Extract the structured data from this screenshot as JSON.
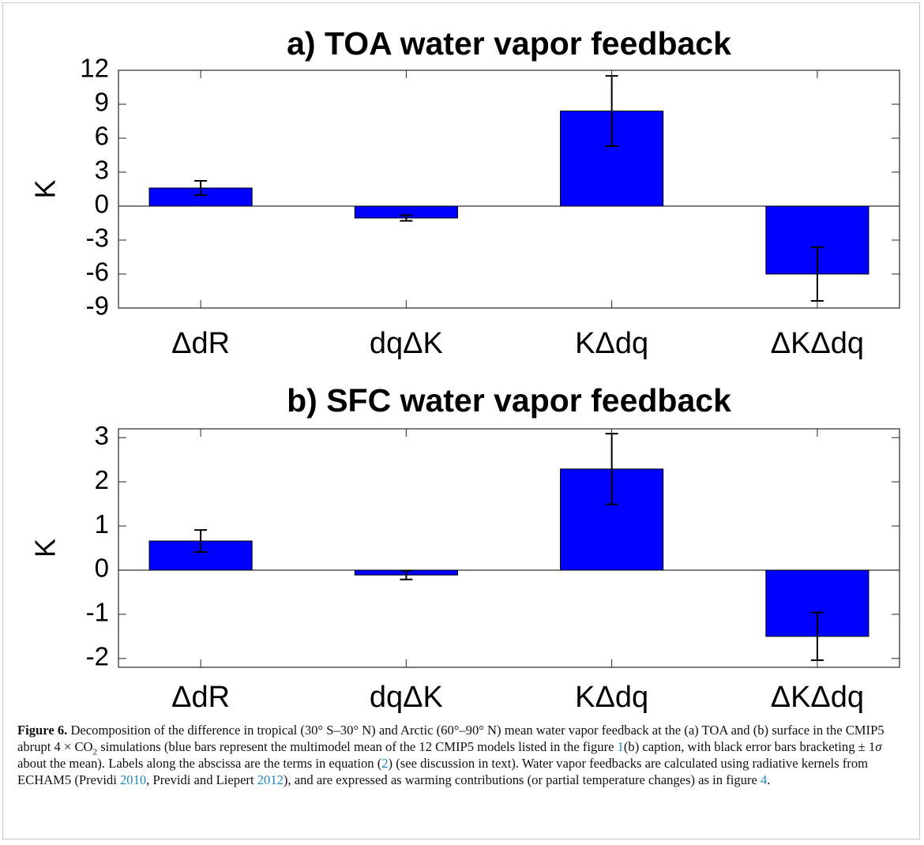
{
  "chart_data": [
    {
      "type": "bar",
      "title": "a) TOA water vapor feedback",
      "ylabel": "K",
      "categories": [
        "ΔdR",
        "dqΔK",
        "KΔdq",
        "ΔKΔdq"
      ],
      "values": [
        1.6,
        -1.05,
        8.4,
        -6.0
      ],
      "errors": [
        0.63,
        0.25,
        3.1,
        2.37
      ],
      "color": "#0000ff",
      "error_color": "#000000",
      "ylim": [
        -9,
        12
      ],
      "yticks": [
        -9,
        -6,
        -3,
        0,
        3,
        6,
        9,
        12
      ]
    },
    {
      "type": "bar",
      "title": "b) SFC water vapor feedback",
      "ylabel": "K",
      "categories": [
        "ΔdR",
        "dqΔK",
        "KΔdq",
        "ΔKΔdq"
      ],
      "values": [
        0.66,
        -0.11,
        2.29,
        -1.5
      ],
      "errors": [
        0.25,
        0.1,
        0.8,
        0.54
      ],
      "color": "#0000ff",
      "error_color": "#000000",
      "ylim": [
        -2.2,
        3.2
      ],
      "yticks": [
        -2,
        -1,
        0,
        1,
        2,
        3
      ]
    }
  ],
  "caption": {
    "parts": [
      "Figure 6.",
      " Decomposition of the difference in tropical (30° S–30° N) and Arctic (60°–90° N) mean water vapor feedback at the (a) TOA and (b) surface in the CMIP5 abrupt 4 × CO",
      "2",
      " simulations (blue bars represent the multimodel mean of the 12 CMIP5 models listed in the figure ",
      "1",
      "(b) caption, with black error bars bracketing ± 1",
      "σ",
      " about the mean). Labels along the abscissa are the terms in equation (",
      "2",
      ") (see discussion in text). Water vapor feedbacks are calculated using radiative kernels from ECHAM5 (Previdi ",
      "2010",
      ", Previdi and Liepert ",
      "2012",
      "), and are expressed as warming contributions (or partial temperature changes) as in figure ",
      "4",
      "."
    ]
  }
}
